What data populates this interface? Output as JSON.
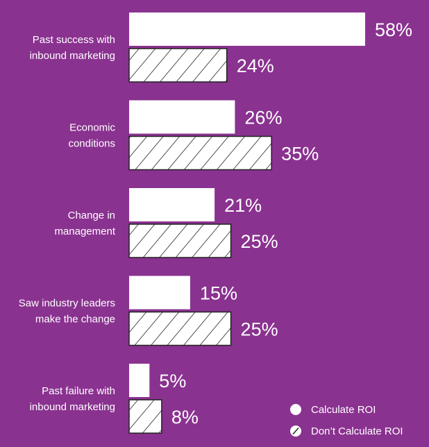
{
  "chart_data": {
    "type": "bar",
    "orientation": "horizontal",
    "categories": [
      [
        "Past success with",
        "inbound marketing"
      ],
      [
        "Economic",
        "conditions"
      ],
      [
        "Change in",
        "management"
      ],
      [
        "Saw industry leaders",
        "make the change"
      ],
      [
        "Past failure with",
        "inbound marketing"
      ]
    ],
    "series": [
      {
        "name": "Calculate ROI",
        "pattern": "solid",
        "values": [
          58,
          26,
          21,
          15,
          5
        ],
        "labels": [
          "58%",
          "26%",
          "21%",
          "15%",
          "5%"
        ]
      },
      {
        "name": "Don’t Calculate ROI",
        "pattern": "hatched",
        "values": [
          24,
          35,
          25,
          25,
          8
        ],
        "labels": [
          "24%",
          "35%",
          "25%",
          "25%",
          "8%"
        ]
      }
    ],
    "xlim": [
      0,
      60
    ],
    "grid": false,
    "legend_position": "bottom-right",
    "colors": {
      "background": "#8a3290",
      "bar": "#ffffff",
      "hatch": "#222222"
    }
  }
}
